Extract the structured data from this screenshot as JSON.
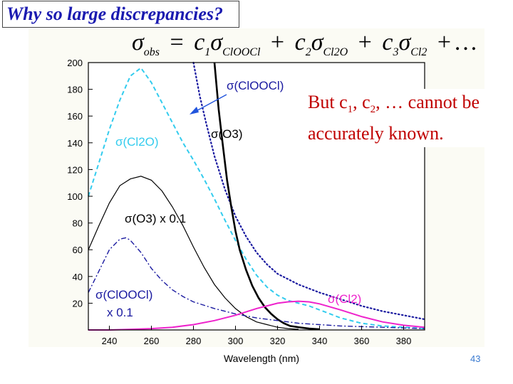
{
  "slide": {
    "title": "Why so large discrepancies?",
    "equation": {
      "lhs_symbol": "σ",
      "lhs_sub": "obs",
      "terms": [
        {
          "coef": "c",
          "coef_sub": "1",
          "symbol": "σ",
          "sub": "ClOOCl"
        },
        {
          "coef": "c",
          "coef_sub": "2",
          "symbol": "σ",
          "sub": "Cl2O"
        },
        {
          "coef": "c",
          "coef_sub": "3",
          "symbol": "σ",
          "sub": "Cl2"
        }
      ],
      "equals": "=",
      "plus": "+",
      "ellipsis": "…"
    },
    "note": {
      "part1": "But c",
      "sub1": "1",
      "part2": ", c",
      "sub2": "2",
      "part3": ", … cannot be accurately known."
    },
    "page_number": "43"
  },
  "colors": {
    "title": "#1a1ab0",
    "note": "#c00000",
    "cl2o": "#33ccee",
    "cl2": "#ee22cc",
    "clooci": "#1a1aa0",
    "o3": "#000000",
    "arrow": "#2255dd"
  },
  "chart_data": {
    "type": "line",
    "xlabel": "Wavelength (nm)",
    "ylabel": "",
    "xlim": [
      230,
      390
    ],
    "ylim": [
      0,
      200
    ],
    "xticks": [
      240,
      260,
      280,
      300,
      320,
      340,
      360,
      380
    ],
    "yticks": [
      20,
      40,
      60,
      80,
      100,
      120,
      140,
      160,
      180,
      200
    ],
    "series": [
      {
        "name": "σ(ClOOCl)",
        "style": "dotted",
        "color": "#1a1aa0",
        "x": [
          280,
          283,
          286,
          290,
          295,
          300,
          305,
          310,
          315,
          320,
          330,
          340,
          350,
          360,
          370,
          380,
          390
        ],
        "y": [
          200,
          175,
          155,
          130,
          105,
          85,
          70,
          58,
          49,
          42,
          34,
          28,
          23,
          18,
          14,
          11,
          8
        ]
      },
      {
        "name": "σ(Cl2O)",
        "style": "dashed",
        "color": "#33ccee",
        "x": [
          230,
          235,
          240,
          245,
          250,
          255,
          260,
          265,
          270,
          275,
          280,
          285,
          290,
          295,
          300,
          305,
          310,
          315,
          320,
          325,
          330,
          335,
          340,
          345,
          350,
          360,
          370,
          380,
          390
        ],
        "y": [
          100,
          125,
          150,
          172,
          190,
          196,
          185,
          170,
          155,
          140,
          127,
          113,
          98,
          82,
          67,
          53,
          41,
          32,
          26,
          22,
          20,
          18,
          15,
          12,
          9,
          5,
          3,
          2,
          1
        ]
      },
      {
        "name": "σ(O3)",
        "style": "solid-thick",
        "color": "#000000",
        "x": [
          290,
          292,
          294,
          296,
          298,
          300,
          302,
          305,
          308,
          311,
          314,
          317,
          320,
          323,
          326,
          330,
          335,
          340
        ],
        "y": [
          200,
          165,
          138,
          112,
          92,
          74,
          60,
          45,
          33,
          24,
          17,
          12,
          8,
          5,
          3,
          2,
          1,
          0.5
        ]
      },
      {
        "name": "σ(O3) x 0.1",
        "style": "solid-thin",
        "color": "#000000",
        "x": [
          230,
          235,
          240,
          245,
          250,
          255,
          260,
          265,
          270,
          275,
          280,
          285,
          290,
          295,
          300,
          305,
          310,
          315,
          320,
          325,
          330
        ],
        "y": [
          60,
          78,
          95,
          108,
          113,
          115,
          112,
          104,
          92,
          78,
          62,
          47,
          34,
          24,
          16,
          10,
          6,
          4,
          2,
          1,
          0.5
        ]
      },
      {
        "name": "σ(ClOOCl) x 0.1",
        "style": "dashdot",
        "color": "#1a1aa0",
        "x": [
          230,
          235,
          240,
          245,
          248,
          250,
          255,
          260,
          265,
          270,
          275,
          280,
          290,
          300,
          310,
          320,
          330,
          340,
          350,
          360,
          370,
          380,
          390
        ],
        "y": [
          28,
          44,
          60,
          68,
          69,
          67,
          58,
          46,
          37,
          30,
          25,
          21,
          16,
          12,
          9,
          7,
          5,
          4,
          3,
          2.5,
          2,
          1.5,
          1
        ]
      },
      {
        "name": "σ(Cl2)",
        "style": "solid",
        "color": "#ee22cc",
        "x": [
          230,
          240,
          250,
          260,
          270,
          280,
          290,
          300,
          310,
          320,
          325,
          330,
          335,
          340,
          350,
          360,
          370,
          380,
          390
        ],
        "y": [
          0,
          0,
          0.5,
          1,
          2,
          4,
          7,
          11,
          16,
          20,
          21,
          21.5,
          21,
          19.5,
          15,
          10,
          6,
          3.5,
          2
        ]
      }
    ],
    "labels": [
      {
        "text": "σ(ClOOCl)",
        "color": "#1a1aa0"
      },
      {
        "text": "σ(O3)",
        "color": "#000000"
      },
      {
        "text": "σ(Cl2O)",
        "color": "#33ccee"
      },
      {
        "text": "σ(O3) x 0.1",
        "color": "#000000"
      },
      {
        "text": "σ(ClOOCl)",
        "color": "#1a1aa0"
      },
      {
        "text": "x 0.1",
        "color": "#1a1aa0"
      },
      {
        "text": "σ(Cl2)",
        "color": "#ee22cc"
      }
    ]
  }
}
